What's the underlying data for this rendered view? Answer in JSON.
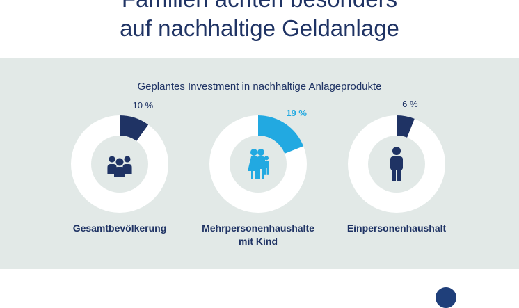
{
  "header": {
    "title_line1": "Familien achten besonders",
    "title_line2": "auf nachhaltige Geldanlage"
  },
  "colors": {
    "background": "#ffffff",
    "panel": "#e2e9e7",
    "ring": "#ffffff",
    "inner": "#e2e9e7",
    "dark_blue": "#1f3364",
    "light_blue": "#22a9e1"
  },
  "chart_data": {
    "type": "pie",
    "title": "Geplantes Investment in nachhaltige Anlageprodukte",
    "unit": "%",
    "series": [
      {
        "label_lines": [
          "Gesamtbevölkerung"
        ],
        "value": 10,
        "value_label": "10 %",
        "color": "#1f3364",
        "icon": "group-icon",
        "highlight": false
      },
      {
        "label_lines": [
          "Mehrpersonenhaushalte",
          "mit Kind"
        ],
        "value": 19,
        "value_label": "19 %",
        "color": "#22a9e1",
        "icon": "family-icon",
        "highlight": true
      },
      {
        "label_lines": [
          "Einpersonenhaushalt"
        ],
        "value": 6,
        "value_label": "6 %",
        "color": "#1f3364",
        "icon": "person-icon",
        "highlight": false
      }
    ]
  }
}
